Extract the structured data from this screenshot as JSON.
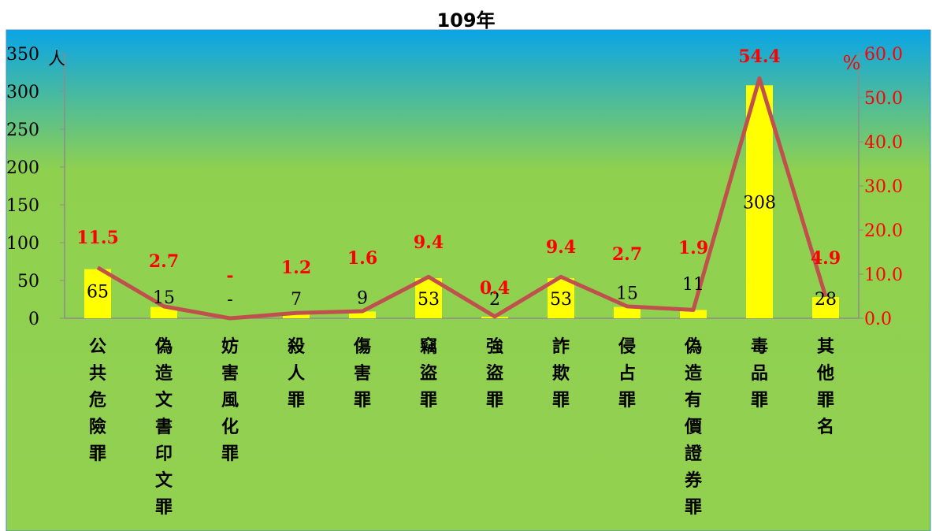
{
  "chart_data": {
    "type": "bar",
    "title": "109年",
    "categories": [
      "公共危險罪",
      "偽造文書印文罪",
      "妨害風化罪",
      "殺人罪",
      "傷害罪",
      "竊盜罪",
      "強盜罪",
      "詐欺罪",
      "侵占罪",
      "偽造有價證券罪",
      "毒品罪",
      "其他罪名"
    ],
    "series": [
      {
        "values": [
          65,
          15,
          null,
          7,
          9,
          53,
          2,
          53,
          15,
          11,
          308,
          28
        ],
        "labels": [
          "65",
          "15",
          "-",
          "7",
          "9",
          "53",
          "2",
          "53",
          "15",
          "11",
          "308",
          "28"
        ]
      },
      {
        "values": [
          11.5,
          2.7,
          0,
          1.2,
          1.6,
          9.4,
          0.4,
          9.4,
          2.7,
          1.9,
          54.4,
          4.9
        ],
        "labels": [
          "11.5",
          "2.7",
          "-",
          "1.2",
          "1.6",
          "9.4",
          "0.4",
          "9.4",
          "2.7",
          "1.9",
          "54.4",
          "4.9"
        ]
      }
    ],
    "y_left": {
      "unit": "人",
      "ticks": [
        "0",
        "50",
        "100",
        "150",
        "200",
        "250",
        "300",
        "350"
      ],
      "ylim": [
        0,
        350
      ]
    },
    "y_right": {
      "unit": "%",
      "ticks": [
        "0.0",
        "10.0",
        "20.0",
        "30.0",
        "40.0",
        "50.0",
        "60.0"
      ],
      "ylim": [
        0,
        60
      ]
    },
    "grid": false,
    "colors": {
      "bar": "#ffff00",
      "line": "#c0504d",
      "pct_label": "#ff0000",
      "plot_top": "#0aa5e6",
      "plot_mid": "#8fd14f",
      "plot_bottom": "#92d050",
      "frame": "#3d8fc7"
    }
  }
}
